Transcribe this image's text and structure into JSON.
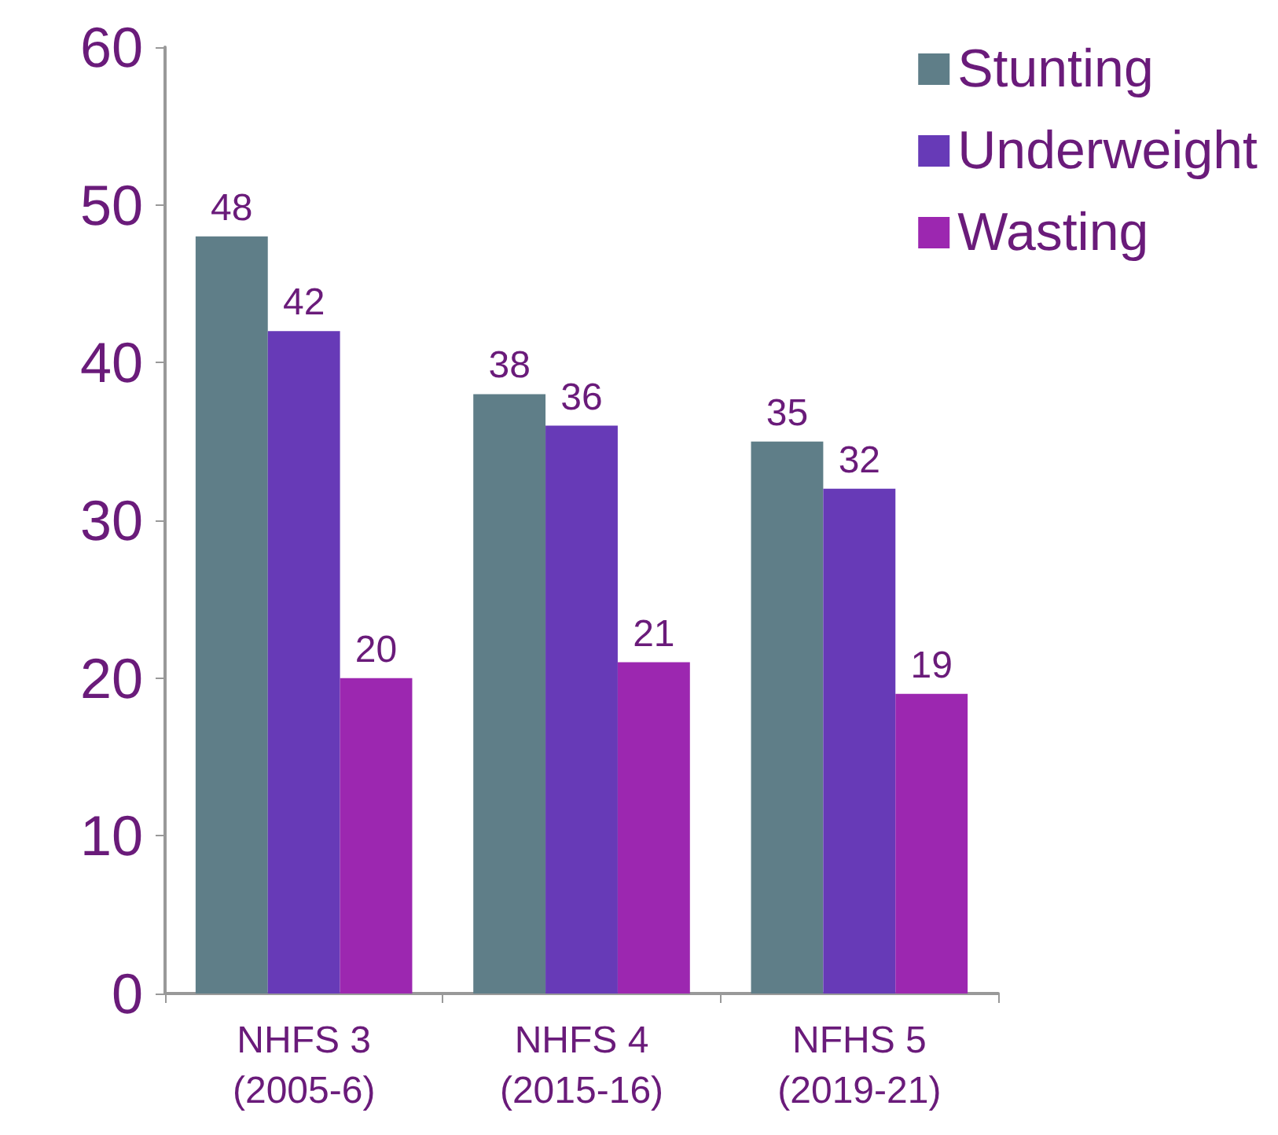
{
  "chart_data": {
    "type": "bar",
    "categories": [
      "NHFS 3\n(2005-6)",
      "NHFS 4\n(2015-16)",
      "NFHS 5\n(2019-21)"
    ],
    "series": [
      {
        "name": "Stunting",
        "color": "#5f7e88",
        "values": [
          48,
          38,
          35
        ]
      },
      {
        "name": "Underweight",
        "color": "#673ab7",
        "values": [
          42,
          36,
          32
        ]
      },
      {
        "name": "Wasting",
        "color": "#9c27b0",
        "values": [
          20,
          21,
          19
        ]
      }
    ],
    "ylim": [
      0,
      60
    ],
    "yticks": [
      0,
      10,
      20,
      30,
      40,
      50,
      60
    ],
    "grid": false,
    "legend": "top right",
    "data_labels": true
  }
}
